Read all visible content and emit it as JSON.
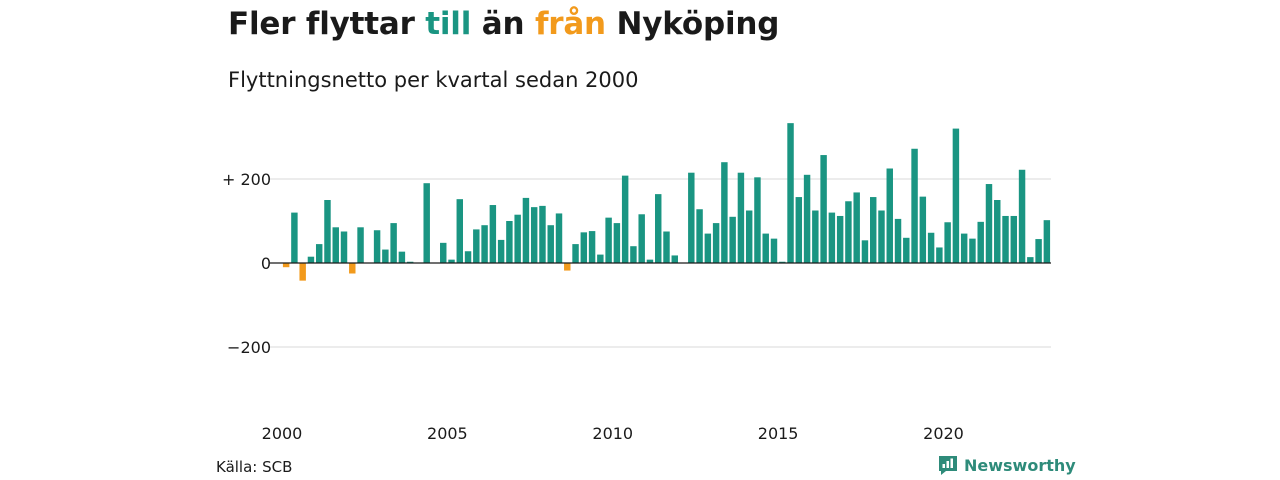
{
  "title": {
    "part1": "Fler flyttar ",
    "highlight_in": "till",
    "part2": " än ",
    "highlight_out": "från",
    "part3": " Nyköping"
  },
  "subtitle": "Flyttningsnetto per kvartal sedan 2000",
  "source": "Källa: SCB",
  "brand": "Newsworthy",
  "colors": {
    "positive": "#1a9582",
    "negative": "#f29a1c",
    "grid": "#d9d9d9",
    "zero": "#1a1a1a"
  },
  "chart_data": {
    "type": "bar",
    "x_start_year": 2000,
    "periods_per_year": 4,
    "xticks": [
      2000,
      2005,
      2010,
      2015,
      2020
    ],
    "xtick_labels": [
      "2000",
      "2005",
      "2010",
      "2015",
      "2020"
    ],
    "yticks": [
      -200,
      0,
      200
    ],
    "ytick_labels": [
      "−200",
      "0",
      "+ 200"
    ],
    "ylim": [
      -330,
      340
    ],
    "values": [
      -10,
      120,
      -42,
      15,
      45,
      150,
      85,
      75,
      -25,
      85,
      0,
      78,
      32,
      95,
      27,
      3,
      0,
      190,
      0,
      48,
      8,
      152,
      28,
      80,
      90,
      138,
      55,
      100,
      115,
      155,
      133,
      136,
      90,
      118,
      -18,
      45,
      73,
      76,
      20,
      108,
      95,
      208,
      40,
      116,
      8,
      164,
      75,
      18,
      0,
      215,
      128,
      70,
      95,
      240,
      110,
      215,
      125,
      204,
      70,
      58,
      3,
      333,
      157,
      210,
      125,
      257,
      120,
      112,
      147,
      168,
      54,
      157,
      125,
      225,
      105,
      60,
      272,
      158,
      72,
      37,
      97,
      320,
      70,
      58,
      98,
      188,
      150,
      112,
      112,
      222,
      14,
      57,
      102
    ]
  }
}
